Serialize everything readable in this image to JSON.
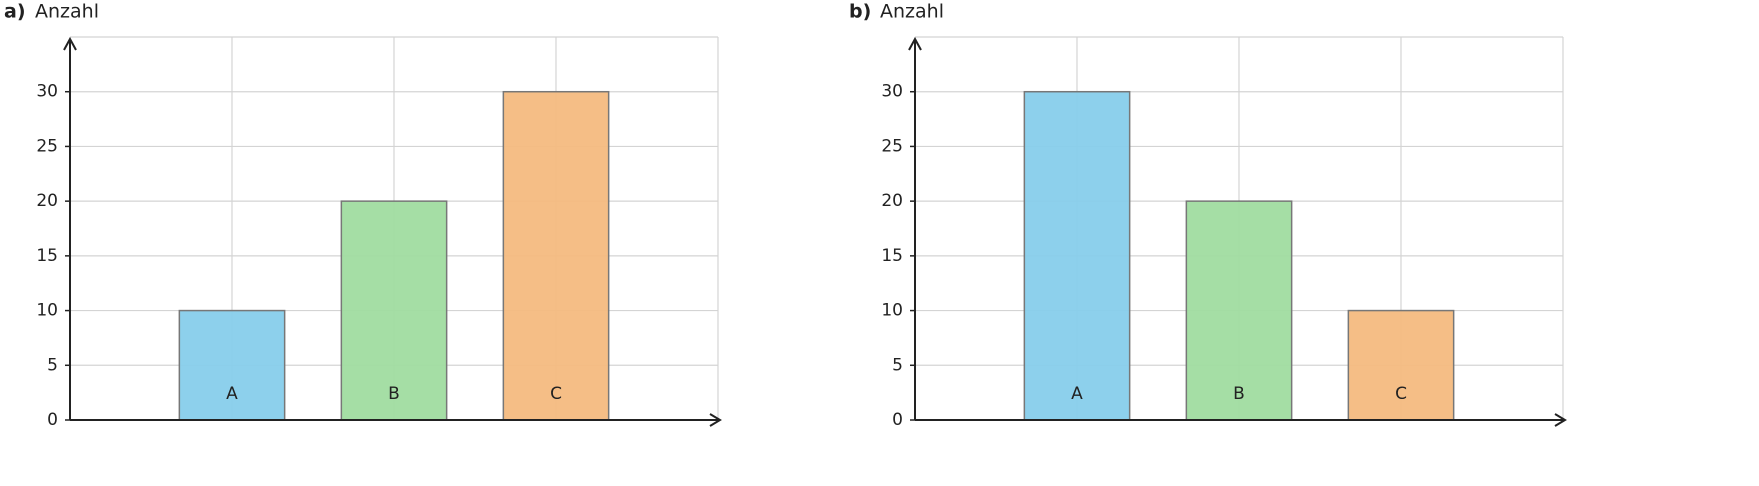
{
  "chart_data": [
    {
      "type": "bar",
      "label": "a)",
      "title": "Anzahl",
      "categories": [
        "A",
        "B",
        "C"
      ],
      "values": [
        10,
        20,
        30
      ],
      "colors": [
        "#87ceeb",
        "#a0dca0",
        "#f4bb80"
      ],
      "ylim": [
        0,
        35
      ],
      "yticks": [
        0,
        5,
        10,
        15,
        20,
        25,
        30
      ],
      "grid": true
    },
    {
      "type": "bar",
      "label": "b)",
      "title": "Anzahl",
      "categories": [
        "A",
        "B",
        "C"
      ],
      "values": [
        30,
        20,
        10
      ],
      "colors": [
        "#87ceeb",
        "#a0dca0",
        "#f4bb80"
      ],
      "ylim": [
        0,
        35
      ],
      "yticks": [
        0,
        5,
        10,
        15,
        20,
        25,
        30
      ],
      "grid": true
    }
  ]
}
